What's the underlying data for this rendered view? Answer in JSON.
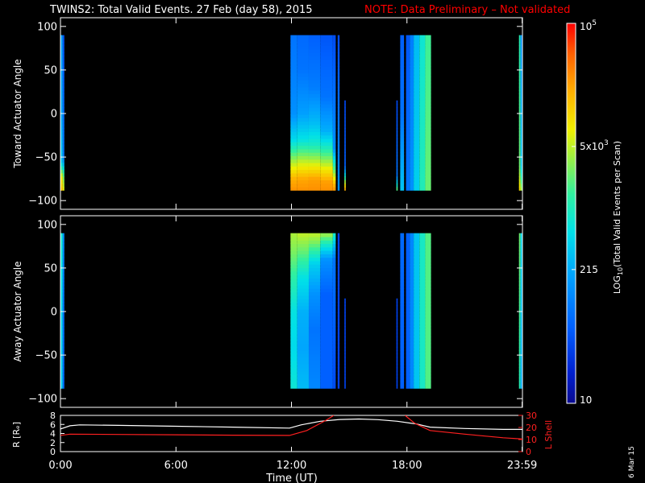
{
  "header": {
    "title": "TWINS2: Total Valid Events. 27 Feb (day  58), 2015",
    "note": "NOTE: Data Preliminary – Not validated"
  },
  "stamp": "6 Mar 15",
  "colors": {
    "background": "#000000",
    "foreground": "#ffffff",
    "note": "#ff0000",
    "l_shell": "#ff2020",
    "radius": "#ffffff"
  },
  "chart_data": [
    {
      "type": "heatmap",
      "name": "toward",
      "ylabel": "Toward Actuator Angle",
      "ylim": [
        -110,
        110
      ],
      "yticks": [
        -100,
        -50,
        0,
        50,
        100
      ],
      "xlim": [
        0,
        24
      ],
      "angle_range": [
        -88,
        90
      ],
      "blocks": [
        {
          "t": [
            0.0,
            0.02
          ],
          "profile": [
            {
              "a": -88,
              "v": 0.86
            },
            {
              "a": -72,
              "v": 0.8
            },
            {
              "a": -55,
              "v": 0.58
            },
            {
              "a": 0,
              "v": 0.5
            },
            {
              "a": 90,
              "v": 0.48
            }
          ]
        },
        {
          "t": [
            0.02,
            0.12
          ],
          "profile": [
            {
              "a": -88,
              "v": 0.8
            },
            {
              "a": -72,
              "v": 0.72
            },
            {
              "a": -55,
              "v": 0.4
            },
            {
              "a": 0,
              "v": 0.34
            },
            {
              "a": 90,
              "v": 0.32
            }
          ]
        },
        {
          "t": [
            0.12,
            0.2
          ],
          "profile": [
            {
              "a": -88,
              "v": 0.72
            },
            {
              "a": -72,
              "v": 0.6
            },
            {
              "a": -50,
              "v": 0.26
            },
            {
              "a": 90,
              "v": 0.18
            }
          ]
        },
        {
          "t": [
            11.95,
            12.3
          ],
          "profile": [
            {
              "a": -88,
              "v": 0.86
            },
            {
              "a": -75,
              "v": 0.82
            },
            {
              "a": -55,
              "v": 0.66
            },
            {
              "a": -30,
              "v": 0.44
            },
            {
              "a": 0,
              "v": 0.3
            },
            {
              "a": 50,
              "v": 0.26
            },
            {
              "a": 90,
              "v": 0.24
            }
          ]
        },
        {
          "t": [
            12.3,
            12.9
          ],
          "profile": [
            {
              "a": -88,
              "v": 0.86
            },
            {
              "a": -75,
              "v": 0.83
            },
            {
              "a": -55,
              "v": 0.68
            },
            {
              "a": -30,
              "v": 0.46
            },
            {
              "a": 0,
              "v": 0.33
            },
            {
              "a": 50,
              "v": 0.24
            },
            {
              "a": 90,
              "v": 0.22
            }
          ]
        },
        {
          "t": [
            12.9,
            13.5
          ],
          "profile": [
            {
              "a": -88,
              "v": 0.86
            },
            {
              "a": -75,
              "v": 0.84
            },
            {
              "a": -60,
              "v": 0.72
            },
            {
              "a": -35,
              "v": 0.5
            },
            {
              "a": -10,
              "v": 0.38
            },
            {
              "a": 30,
              "v": 0.26
            },
            {
              "a": 90,
              "v": 0.2
            }
          ]
        },
        {
          "t": [
            13.5,
            14.15
          ],
          "profile": [
            {
              "a": -88,
              "v": 0.86
            },
            {
              "a": -78,
              "v": 0.84
            },
            {
              "a": -65,
              "v": 0.74
            },
            {
              "a": -45,
              "v": 0.56
            },
            {
              "a": -20,
              "v": 0.36
            },
            {
              "a": 20,
              "v": 0.24
            },
            {
              "a": 90,
              "v": 0.18
            }
          ]
        },
        {
          "t": [
            14.15,
            14.3
          ],
          "profile": [
            {
              "a": -88,
              "v": 0.86
            },
            {
              "a": -80,
              "v": 0.8
            },
            {
              "a": -65,
              "v": 0.6
            },
            {
              "a": -40,
              "v": 0.3
            },
            {
              "a": 90,
              "v": 0.16
            }
          ]
        },
        {
          "t": [
            14.4,
            14.5
          ],
          "profile": [
            {
              "a": -88,
              "v": 0.3
            },
            {
              "a": 90,
              "v": 0.16
            }
          ]
        },
        {
          "t": [
            14.75,
            14.82
          ],
          "profile": [
            {
              "a": -88,
              "v": 0.86
            },
            {
              "a": -80,
              "v": 0.7
            },
            {
              "a": -60,
              "v": 0.2
            },
            {
              "a": 15,
              "v": 0.15
            }
          ]
        },
        {
          "t": [
            17.45,
            17.52
          ],
          "profile": [
            {
              "a": -88,
              "v": 0.62
            },
            {
              "a": -70,
              "v": 0.24
            },
            {
              "a": 15,
              "v": 0.15
            }
          ]
        },
        {
          "t": [
            17.65,
            17.85
          ],
          "profile": [
            {
              "a": -88,
              "v": 0.4
            },
            {
              "a": 0,
              "v": 0.24
            },
            {
              "a": 90,
              "v": 0.2
            }
          ]
        },
        {
          "t": [
            17.95,
            18.15
          ],
          "profile": [
            {
              "a": -88,
              "v": 0.24
            },
            {
              "a": 90,
              "v": 0.18
            }
          ]
        },
        {
          "t": [
            18.15,
            18.35
          ],
          "profile": [
            {
              "a": -88,
              "v": 0.3
            },
            {
              "a": 90,
              "v": 0.26
            }
          ]
        },
        {
          "t": [
            18.35,
            18.65
          ],
          "profile": [
            {
              "a": -88,
              "v": 0.42
            },
            {
              "a": 90,
              "v": 0.38
            }
          ]
        },
        {
          "t": [
            18.65,
            18.95
          ],
          "profile": [
            {
              "a": -88,
              "v": 0.52
            },
            {
              "a": 90,
              "v": 0.48
            }
          ]
        },
        {
          "t": [
            18.95,
            19.25
          ],
          "profile": [
            {
              "a": -88,
              "v": 0.6
            },
            {
              "a": 90,
              "v": 0.56
            }
          ]
        },
        {
          "t": [
            23.82,
            23.9
          ],
          "profile": [
            {
              "a": -88,
              "v": 0.76
            },
            {
              "a": -60,
              "v": 0.6
            },
            {
              "a": 90,
              "v": 0.52
            }
          ]
        },
        {
          "t": [
            23.9,
            23.99
          ],
          "profile": [
            {
              "a": -88,
              "v": 0.66
            },
            {
              "a": -60,
              "v": 0.4
            },
            {
              "a": 90,
              "v": 0.28
            }
          ]
        }
      ]
    },
    {
      "type": "heatmap",
      "name": "away",
      "ylabel": "Away Actuator Angle",
      "ylim": [
        -110,
        110
      ],
      "yticks": [
        -100,
        -50,
        0,
        50,
        100
      ],
      "xlim": [
        0,
        24
      ],
      "angle_range": [
        -88,
        90
      ],
      "blocks": [
        {
          "t": [
            0.0,
            0.02
          ],
          "profile": [
            {
              "a": -88,
              "v": 0.56
            },
            {
              "a": 0,
              "v": 0.58
            },
            {
              "a": 90,
              "v": 0.62
            }
          ]
        },
        {
          "t": [
            0.02,
            0.12
          ],
          "profile": [
            {
              "a": -88,
              "v": 0.4
            },
            {
              "a": 0,
              "v": 0.42
            },
            {
              "a": 90,
              "v": 0.48
            }
          ]
        },
        {
          "t": [
            0.12,
            0.2
          ],
          "profile": [
            {
              "a": -88,
              "v": 0.22
            },
            {
              "a": 0,
              "v": 0.24
            },
            {
              "a": 90,
              "v": 0.3
            }
          ]
        },
        {
          "t": [
            11.95,
            12.3
          ],
          "profile": [
            {
              "a": -88,
              "v": 0.48
            },
            {
              "a": -40,
              "v": 0.44
            },
            {
              "a": 0,
              "v": 0.46
            },
            {
              "a": 40,
              "v": 0.54
            },
            {
              "a": 70,
              "v": 0.62
            },
            {
              "a": 90,
              "v": 0.66
            }
          ]
        },
        {
          "t": [
            12.3,
            12.9
          ],
          "profile": [
            {
              "a": -88,
              "v": 0.38
            },
            {
              "a": -40,
              "v": 0.34
            },
            {
              "a": 0,
              "v": 0.36
            },
            {
              "a": 40,
              "v": 0.46
            },
            {
              "a": 70,
              "v": 0.6
            },
            {
              "a": 90,
              "v": 0.68
            }
          ]
        },
        {
          "t": [
            12.9,
            13.5
          ],
          "profile": [
            {
              "a": -88,
              "v": 0.28
            },
            {
              "a": -20,
              "v": 0.24
            },
            {
              "a": 20,
              "v": 0.3
            },
            {
              "a": 55,
              "v": 0.42
            },
            {
              "a": 80,
              "v": 0.62
            },
            {
              "a": 90,
              "v": 0.68
            }
          ]
        },
        {
          "t": [
            13.5,
            14.15
          ],
          "profile": [
            {
              "a": -88,
              "v": 0.2
            },
            {
              "a": 20,
              "v": 0.2
            },
            {
              "a": 60,
              "v": 0.3
            },
            {
              "a": 82,
              "v": 0.55
            },
            {
              "a": 90,
              "v": 0.66
            }
          ]
        },
        {
          "t": [
            14.15,
            14.3
          ],
          "profile": [
            {
              "a": -88,
              "v": 0.16
            },
            {
              "a": 60,
              "v": 0.24
            },
            {
              "a": 90,
              "v": 0.5
            }
          ]
        },
        {
          "t": [
            14.4,
            14.5
          ],
          "profile": [
            {
              "a": -88,
              "v": 0.14
            },
            {
              "a": 90,
              "v": 0.14
            }
          ]
        },
        {
          "t": [
            14.75,
            14.82
          ],
          "profile": [
            {
              "a": -88,
              "v": 0.14
            },
            {
              "a": 15,
              "v": 0.14
            }
          ]
        },
        {
          "t": [
            17.45,
            17.52
          ],
          "profile": [
            {
              "a": -88,
              "v": 0.14
            },
            {
              "a": 15,
              "v": 0.14
            }
          ]
        },
        {
          "t": [
            17.65,
            17.85
          ],
          "profile": [
            {
              "a": -88,
              "v": 0.2
            },
            {
              "a": 90,
              "v": 0.22
            }
          ]
        },
        {
          "t": [
            17.95,
            18.15
          ],
          "profile": [
            {
              "a": -88,
              "v": 0.2
            },
            {
              "a": 90,
              "v": 0.2
            }
          ]
        },
        {
          "t": [
            18.15,
            18.35
          ],
          "profile": [
            {
              "a": -88,
              "v": 0.28
            },
            {
              "a": 90,
              "v": 0.28
            }
          ]
        },
        {
          "t": [
            18.35,
            18.65
          ],
          "profile": [
            {
              "a": -88,
              "v": 0.4
            },
            {
              "a": 90,
              "v": 0.4
            }
          ]
        },
        {
          "t": [
            18.65,
            18.95
          ],
          "profile": [
            {
              "a": -88,
              "v": 0.5
            },
            {
              "a": 90,
              "v": 0.5
            }
          ]
        },
        {
          "t": [
            18.95,
            19.25
          ],
          "profile": [
            {
              "a": -88,
              "v": 0.58
            },
            {
              "a": 90,
              "v": 0.58
            }
          ]
        },
        {
          "t": [
            23.82,
            23.9
          ],
          "profile": [
            {
              "a": -88,
              "v": 0.52
            },
            {
              "a": 90,
              "v": 0.6
            }
          ]
        },
        {
          "t": [
            23.9,
            23.99
          ],
          "profile": [
            {
              "a": -88,
              "v": 0.34
            },
            {
              "a": 90,
              "v": 0.42
            }
          ]
        }
      ]
    },
    {
      "type": "line",
      "name": "orbit",
      "xlabel": "Time (UT)",
      "xticks": [
        {
          "t": 0,
          "label": "0:00"
        },
        {
          "t": 6,
          "label": "6:00"
        },
        {
          "t": 12,
          "label": "12:00"
        },
        {
          "t": 18,
          "label": "18:00"
        },
        {
          "t": 23.983,
          "label": "23:59"
        }
      ],
      "xlim": [
        0,
        24
      ],
      "left_axis": {
        "ylabel": "R [Rₑ]",
        "ylim": [
          0,
          8
        ],
        "yticks": [
          0,
          2,
          4,
          6,
          8
        ]
      },
      "right_axis": {
        "ylabel": "L Shell",
        "ylim": [
          0,
          30
        ],
        "yticks": [
          0,
          10,
          20,
          30
        ]
      },
      "series": [
        {
          "axis": "left",
          "x": [
            0,
            0.5,
            1,
            3,
            6,
            9,
            11.9,
            12.5,
            13.5,
            14.5,
            15.5,
            16.5,
            17.5,
            18.5,
            19.2,
            21,
            23,
            24
          ],
          "y": [
            5.0,
            5.7,
            5.9,
            5.8,
            5.6,
            5.4,
            5.2,
            5.9,
            6.7,
            7.1,
            7.2,
            7.05,
            6.7,
            6.1,
            5.4,
            5.1,
            4.9,
            4.9
          ]
        },
        {
          "axis": "right",
          "x": [
            0,
            0.5,
            3,
            6,
            9,
            11.9,
            12.8,
            13.8,
            14.2
          ],
          "y": [
            13.5,
            14.5,
            14.2,
            13.9,
            13.6,
            13.4,
            17.5,
            26,
            30
          ]
        },
        {
          "axis": "right",
          "x": [
            17.9,
            18.4,
            19.2,
            21,
            23,
            24
          ],
          "y": [
            30,
            23.5,
            17.5,
            14.5,
            11.5,
            10.5
          ]
        }
      ]
    }
  ],
  "colorbar": {
    "label": "LOG",
    "label_sub": "10",
    "label_rest": "(Total Valid Events per Scan)",
    "ticks": [
      {
        "frac": 0.0,
        "label": "10"
      },
      {
        "frac": 0.352,
        "label": "215"
      },
      {
        "frac": 0.676,
        "label": "5x10",
        "sup": "3"
      },
      {
        "frac": 1.0,
        "label": "10",
        "sup": "5"
      }
    ]
  }
}
